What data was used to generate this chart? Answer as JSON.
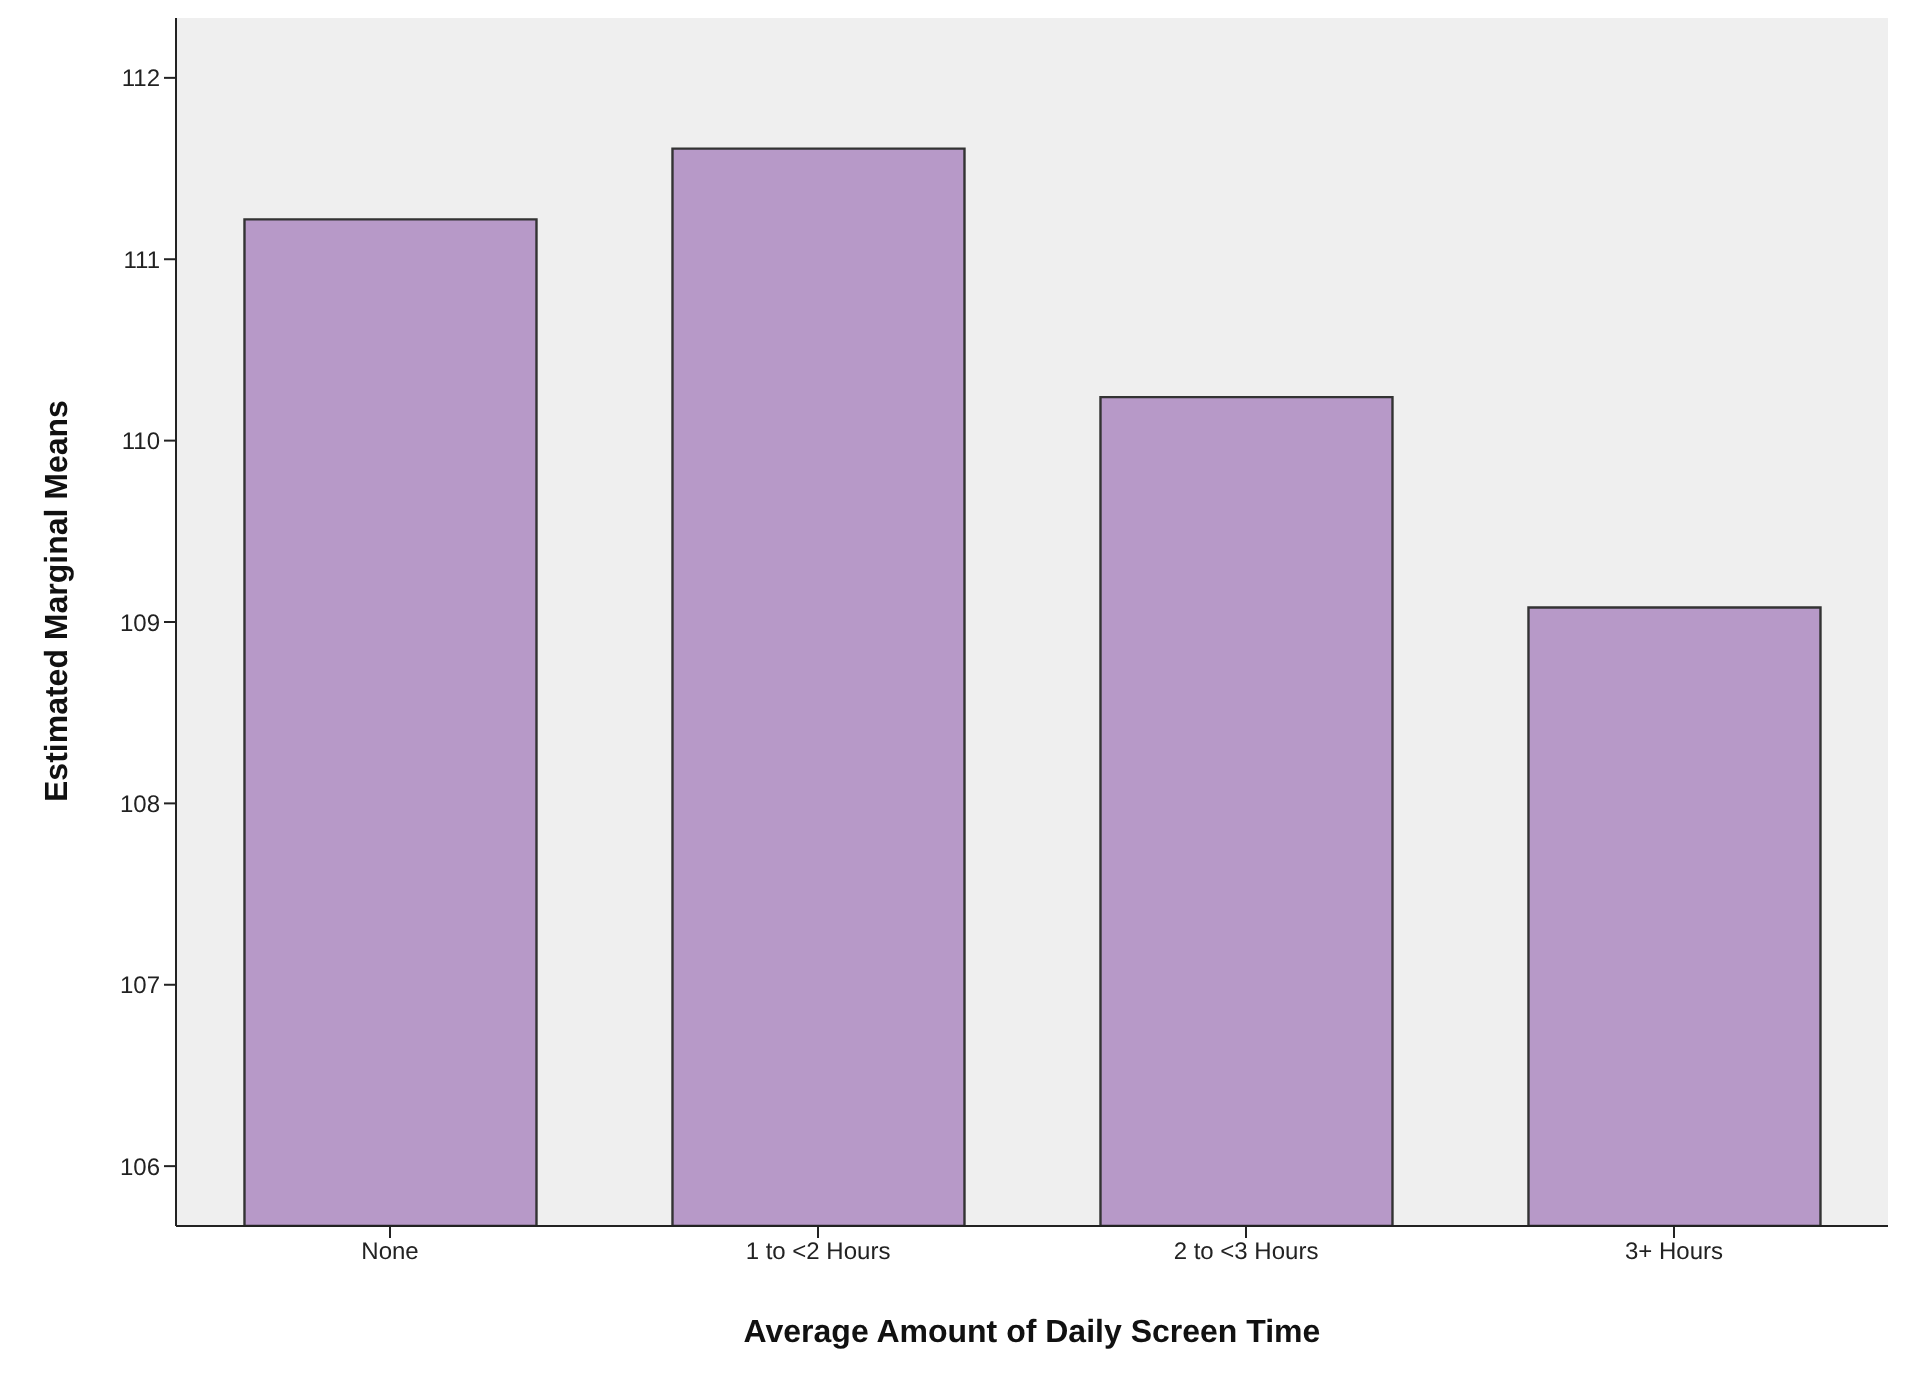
{
  "chart_data": {
    "type": "bar",
    "xlabel": "Average Amount of Daily Screen Time",
    "ylabel": "Estimated Marginal Means",
    "categories": [
      "None",
      "1 to <2 Hours",
      "2 to <3 Hours",
      "3+ Hours"
    ],
    "values": [
      111.22,
      111.61,
      110.24,
      109.08
    ],
    "color": "#b799c8",
    "ylim": [
      105.67,
      112.33
    ],
    "yticks": [
      106,
      107,
      108,
      109,
      110,
      111,
      112
    ],
    "grid": false
  }
}
